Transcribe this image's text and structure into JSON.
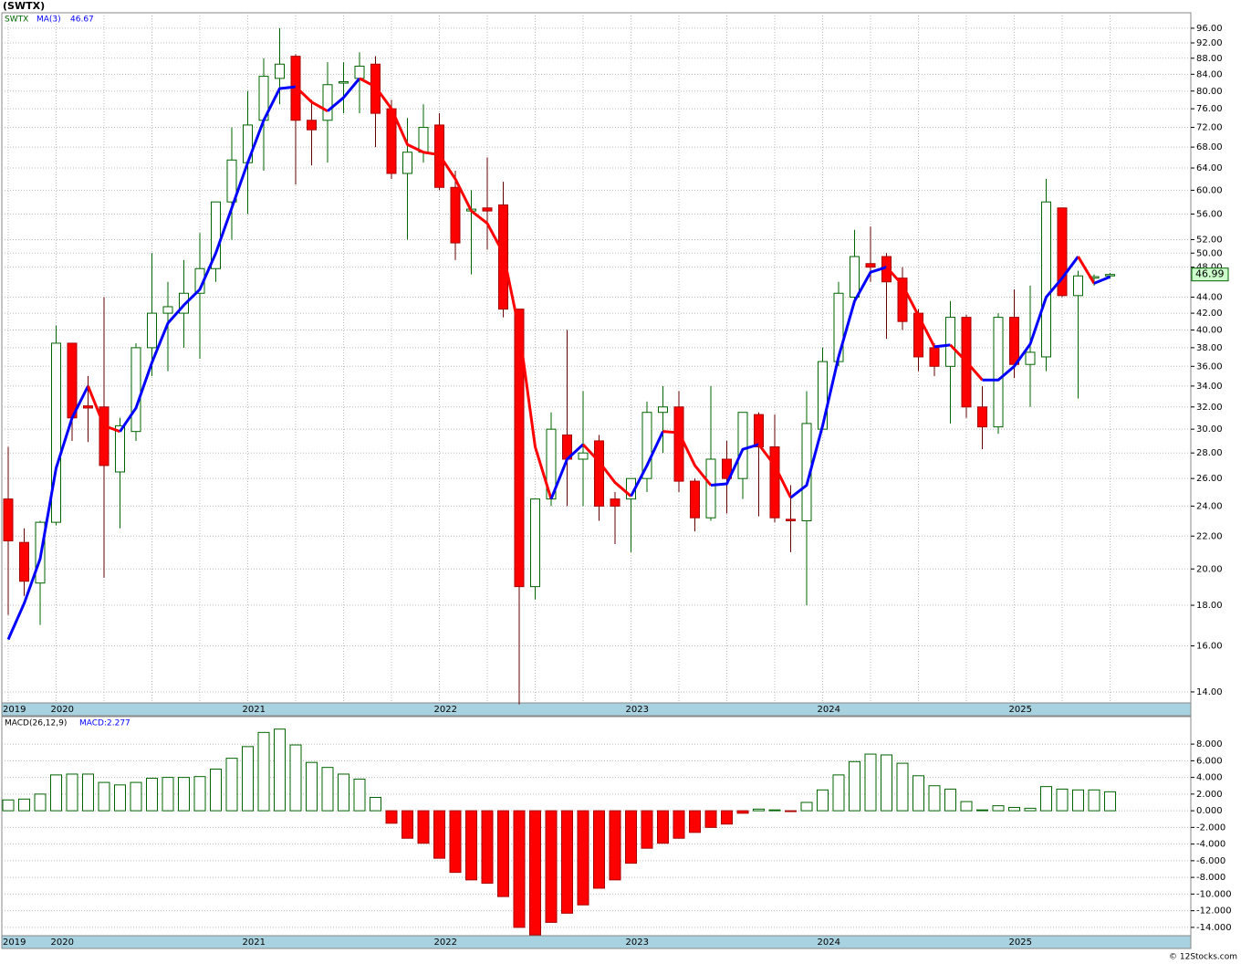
{
  "chart_data": [
    {
      "type": "candlestick",
      "title": "(SWTX)",
      "symbol": "SWTX",
      "categories": [
        "2019",
        null,
        null,
        "2020",
        null,
        null,
        null,
        null,
        null,
        null,
        null,
        null,
        null,
        null,
        null,
        "2021",
        null,
        null,
        null,
        null,
        null,
        null,
        null,
        null,
        null,
        null,
        null,
        "2022",
        null,
        null,
        null,
        null,
        null,
        null,
        null,
        null,
        null,
        null,
        null,
        "2023",
        null,
        null,
        null,
        null,
        null,
        null,
        null,
        null,
        null,
        null,
        null,
        "2024",
        null,
        null,
        null,
        null,
        null,
        null,
        null,
        null,
        null,
        null,
        null,
        "2025",
        null,
        null,
        null,
        null,
        null,
        null
      ],
      "open": [
        24.5,
        21.6,
        19.2,
        22.9,
        38.5,
        32.1,
        32,
        26.5,
        29.8,
        38,
        42,
        42,
        44.5,
        47.8,
        58,
        65,
        73.5,
        83,
        88.5,
        73.5,
        73.5,
        82,
        83,
        86.5,
        76,
        63,
        67,
        72.5,
        60.5,
        56.5,
        57,
        57.5,
        42.5,
        19,
        24.5,
        29.5,
        27.5,
        29,
        24.5,
        24.5,
        26,
        31.5,
        32,
        25.8,
        23.2,
        27.5,
        26,
        31.3,
        28.5,
        23.1,
        23,
        30,
        36.5,
        44,
        48.5,
        49.5,
        46.5,
        42,
        38,
        36,
        41.5,
        32,
        30.2,
        41.5,
        36.2,
        37,
        57,
        44.2,
        46.5,
        46.8
      ],
      "high": [
        28.5,
        22.5,
        23,
        40.5,
        38.5,
        35,
        44,
        31,
        38.5,
        50,
        46,
        49,
        53,
        58,
        72,
        80,
        88,
        96,
        89,
        78,
        87,
        87,
        89.5,
        88.5,
        78,
        74,
        77,
        75,
        63.5,
        60,
        66,
        61.5,
        42.5,
        24.5,
        31.5,
        40,
        33.5,
        29.5,
        25,
        26,
        32.5,
        34,
        33.5,
        26,
        34,
        29,
        31.5,
        31.5,
        31.3,
        25.5,
        33.5,
        38,
        46,
        53.5,
        54,
        50,
        48,
        42.5,
        38.5,
        43.5,
        41.8,
        34,
        42,
        45,
        45.5,
        62,
        57,
        47.5,
        47,
        47.2
      ],
      "low": [
        17.5,
        18.5,
        17,
        22.7,
        29,
        28.9,
        19.5,
        22.5,
        29,
        35,
        35.5,
        38,
        36.8,
        46,
        52,
        56,
        63.5,
        77,
        61,
        64.5,
        65,
        75,
        75,
        68,
        62,
        52,
        65,
        60,
        49,
        47,
        50.5,
        41.5,
        13.5,
        18.3,
        24,
        24,
        24,
        23,
        21.5,
        21,
        25,
        28,
        25,
        22.3,
        23,
        23.5,
        24.5,
        23.3,
        22.9,
        21,
        18,
        30,
        36,
        43,
        46,
        39,
        40,
        35.5,
        35,
        30.5,
        31,
        28.3,
        29.6,
        34.8,
        32,
        35.5,
        44,
        32.8,
        45.5,
        46.5
      ],
      "close": [
        21.7,
        19.3,
        22.9,
        38.5,
        31,
        31.9,
        27,
        30.3,
        38,
        42,
        42.8,
        44.5,
        47.8,
        58,
        65.5,
        72.5,
        83.5,
        86.5,
        73.5,
        71.5,
        81.5,
        82.2,
        86,
        75,
        63,
        67,
        72,
        60.5,
        51.5,
        56.8,
        56.5,
        42.5,
        19,
        24.5,
        30,
        27.5,
        28,
        24,
        24,
        26,
        31.5,
        32,
        25.8,
        23.2,
        27.5,
        26,
        31.5,
        28.5,
        23.2,
        23,
        30.5,
        36.5,
        44.5,
        49.5,
        48,
        46,
        41,
        37,
        36,
        41.5,
        32,
        30.2,
        41.5,
        36.2,
        37.5,
        58,
        44.2,
        46.8,
        46.7,
        46.99
      ],
      "up_color": "#006400",
      "down_color": "#ff0000",
      "ma": {
        "name": "MA(3)",
        "up_color": "#0000ff",
        "down_color": "#ff0000",
        "values": [
          16.3,
          18.1,
          20.6,
          26.8,
          31,
          34,
          30.3,
          29.8,
          31.9,
          36.4,
          40.8,
          43,
          45,
          50,
          57,
          65,
          73.5,
          80.6,
          81,
          77.5,
          75.5,
          78.5,
          83,
          81,
          76,
          68.5,
          67,
          66.5,
          62,
          56.5,
          54.5,
          50,
          40,
          28.5,
          24.5,
          27.5,
          28.7,
          27.3,
          25.7,
          24.7,
          27,
          29.8,
          29.7,
          27,
          25.5,
          25.6,
          28.3,
          28.7,
          27,
          24.6,
          25.5,
          30.3,
          37,
          43.5,
          47.3,
          48,
          45.6,
          41.7,
          38.1,
          38.3,
          36.5,
          34.6,
          34.6,
          36,
          38.4,
          44,
          46.5,
          49.5,
          45.8,
          46.67
        ]
      },
      "log_scale": true,
      "grid": true,
      "ylim": [
        13.56,
        100.4
      ],
      "yticks": [
        {
          "value": 14,
          "label": "14.00"
        },
        {
          "value": 16,
          "label": "16.00"
        },
        {
          "value": 18,
          "label": "18.00"
        },
        {
          "value": 20,
          "label": "20.00"
        },
        {
          "value": 22,
          "label": "22.00"
        },
        {
          "value": 24,
          "label": "24.00"
        },
        {
          "value": 26,
          "label": "26.00"
        },
        {
          "value": 28,
          "label": "28.00"
        },
        {
          "value": 30,
          "label": "30.00"
        },
        {
          "value": 32,
          "label": "32.00"
        },
        {
          "value": 34,
          "label": "34.00"
        },
        {
          "value": 36,
          "label": "36.00"
        },
        {
          "value": 38,
          "label": "38.00"
        },
        {
          "value": 40,
          "label": "40.00"
        },
        {
          "value": 42,
          "label": "42.00"
        },
        {
          "value": 44,
          "label": "44.00"
        },
        {
          "value": 48,
          "label": "48.00"
        },
        {
          "value": 50,
          "label": "50.00"
        },
        {
          "value": 52,
          "label": "52.00"
        },
        {
          "value": 56,
          "label": "56.00"
        },
        {
          "value": 60,
          "label": "60.00"
        },
        {
          "value": 64,
          "label": "64.00"
        },
        {
          "value": 68,
          "label": "68.00"
        },
        {
          "value": 72,
          "label": "72.00"
        },
        {
          "value": 76,
          "label": "76.00"
        },
        {
          "value": 80,
          "label": "80.00"
        },
        {
          "value": 84,
          "label": "84.00"
        },
        {
          "value": 88,
          "label": "88.00"
        },
        {
          "value": 92,
          "label": "92.00"
        },
        {
          "value": 96,
          "label": "96.00"
        }
      ]
    },
    {
      "type": "bar",
      "name": "MACD(26,12,9)",
      "value_label": "MACD:2.277",
      "values": [
        1.3,
        1.4,
        2.0,
        4.3,
        4.4,
        4.4,
        3.4,
        3.1,
        3.4,
        3.9,
        4.0,
        4.0,
        4.1,
        5.0,
        6.3,
        7.7,
        9.4,
        9.8,
        7.9,
        5.8,
        5.2,
        4.4,
        3.8,
        1.6,
        -1.5,
        -3.3,
        -3.9,
        -5.7,
        -7.4,
        -8.3,
        -8.7,
        -10.3,
        -14.0,
        -14.9,
        -13.4,
        -12.3,
        -11.3,
        -9.3,
        -8.3,
        -6.3,
        -4.5,
        -3.9,
        -3.3,
        -2.6,
        -2.0,
        -1.6,
        -0.3,
        0.2,
        0.1,
        -0.1,
        1.0,
        2.5,
        4.3,
        5.9,
        6.8,
        6.7,
        5.7,
        4.2,
        3.0,
        2.6,
        1.1,
        0.1,
        0.6,
        0.4,
        0.3,
        2.9,
        2.6,
        2.5,
        2.5,
        2.277
      ],
      "pos_color": "#006400",
      "neg_color": "#ff0000",
      "ylim": [
        -15,
        11.3
      ],
      "yticks": [
        {
          "value": -14,
          "label": "-14.000"
        },
        {
          "value": -12,
          "label": "-12.000"
        },
        {
          "value": -10,
          "label": "-10.000"
        },
        {
          "value": -8,
          "label": "-8.000"
        },
        {
          "value": -6,
          "label": "-6.000"
        },
        {
          "value": -4,
          "label": "-4.000"
        },
        {
          "value": -2,
          "label": "-2.000"
        },
        {
          "value": 0,
          "label": "0.000"
        },
        {
          "value": 2,
          "label": "2.000"
        },
        {
          "value": 4,
          "label": "4.000"
        },
        {
          "value": 6,
          "label": "6.000"
        },
        {
          "value": 8,
          "label": "8.000"
        }
      ]
    }
  ],
  "footer": "© 12Stocks.com"
}
